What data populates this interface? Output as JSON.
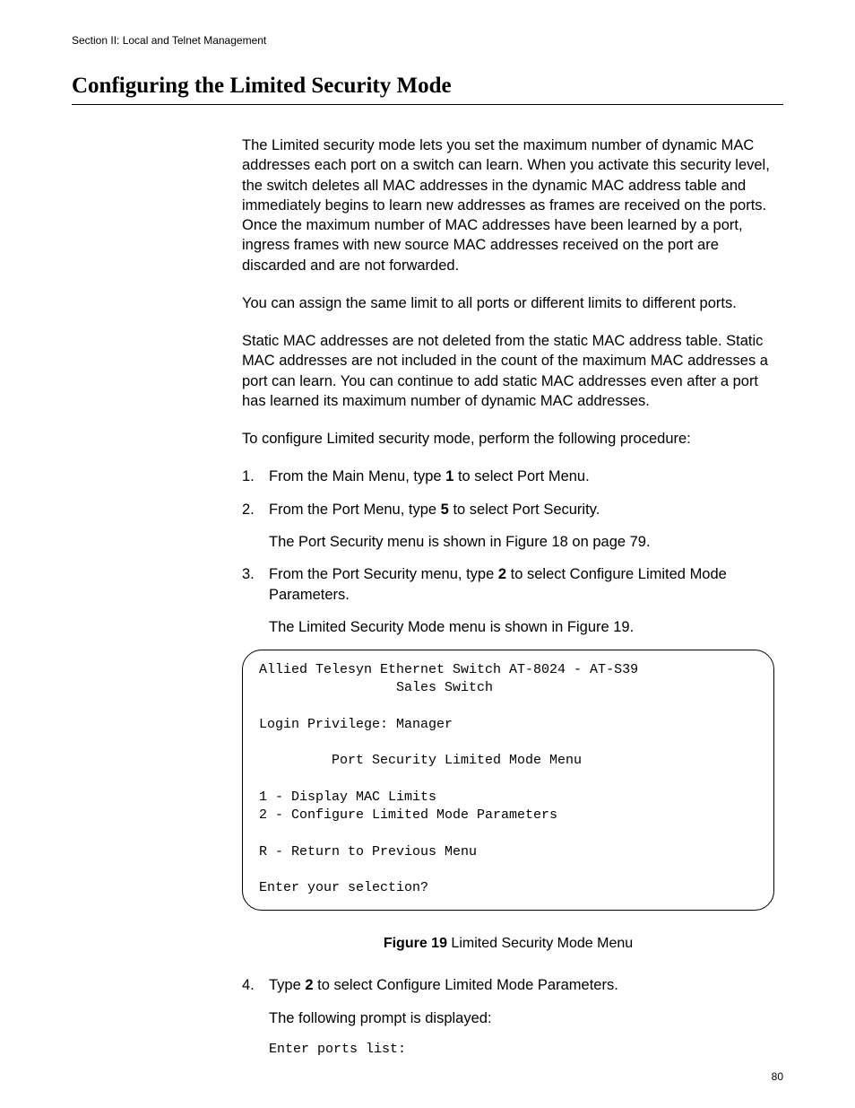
{
  "header": {
    "section_label": "Section II: Local and Telnet Management"
  },
  "heading": "Configuring the Limited Security Mode",
  "paragraphs": {
    "p1": "The Limited security mode lets you set the maximum number of dynamic MAC addresses each port on a switch can learn. When you activate this security level, the switch deletes all MAC addresses in the dynamic MAC address table and immediately begins to learn new addresses as frames are received on the ports. Once the maximum number of MAC addresses have been learned by a port, ingress frames with new source MAC addresses received on the port are discarded and are not forwarded.",
    "p2": "You can assign the same limit to all ports or different limits to different ports.",
    "p3": "Static MAC addresses are not deleted from the static MAC address table. Static MAC addresses are not included in the count of the maximum MAC addresses a port can learn. You can continue to add static MAC addresses even after a port has learned its maximum number of dynamic MAC addresses.",
    "p4": "To configure Limited security mode, perform the following procedure:"
  },
  "steps": {
    "s1": {
      "num": "1.",
      "pre": "From the Main Menu, type ",
      "bold": "1",
      "post": " to select Port Menu."
    },
    "s2": {
      "num": "2.",
      "pre": "From the Port Menu, type ",
      "bold": "5",
      "post": " to select Port Security.",
      "sub": "The Port Security menu is shown in Figure 18 on page 79."
    },
    "s3": {
      "num": "3.",
      "pre": "From the Port Security menu, type ",
      "bold": "2",
      "post": " to select Configure Limited Mode Parameters.",
      "sub": "The Limited Security Mode menu is shown in Figure 19."
    },
    "s4": {
      "num": "4.",
      "pre": "Type ",
      "bold": "2",
      "post": " to select Configure Limited Mode Parameters.",
      "sub": "The following prompt is displayed:",
      "mono": "Enter ports list:"
    }
  },
  "terminal": "Allied Telesyn Ethernet Switch AT-8024 - AT-S39\n                 Sales Switch\n\nLogin Privilege: Manager\n\n         Port Security Limited Mode Menu\n\n1 - Display MAC Limits\n2 - Configure Limited Mode Parameters\n\nR - Return to Previous Menu\n\nEnter your selection?",
  "figure": {
    "label": "Figure 19",
    "text": "  Limited Security Mode Menu"
  },
  "page_number": "80"
}
